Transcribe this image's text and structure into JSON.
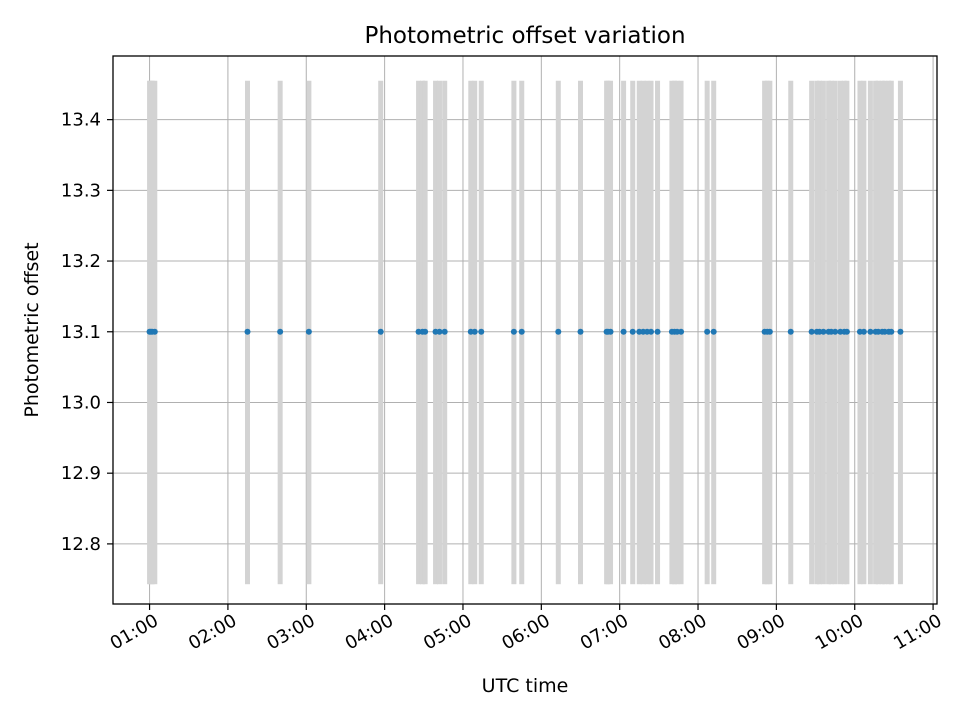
{
  "chart_data": {
    "type": "scatter",
    "title": "Photometric offset variation",
    "xlabel": "UTC time",
    "ylabel": "Photometric offset",
    "xlim": [
      "00:32",
      "11:03"
    ],
    "ylim": [
      12.715,
      13.49
    ],
    "xticks": [
      "01:00",
      "02:00",
      "03:00",
      "04:00",
      "05:00",
      "06:00",
      "07:00",
      "08:00",
      "09:00",
      "10:00",
      "11:00"
    ],
    "yticks": [
      "12.8",
      "12.9",
      "13.0",
      "13.1",
      "13.2",
      "13.3",
      "13.4"
    ],
    "grid": true,
    "band_range": [
      12.743,
      13.455
    ],
    "colors": {
      "points": "#1f77b4",
      "bands": "#d3d3d3",
      "grid": "#b0b0b0"
    },
    "series": [
      {
        "x": [
          "01:00",
          "01:01",
          "01:02",
          "01:04",
          "02:15",
          "02:40",
          "03:02",
          "03:57",
          "04:26",
          "04:29",
          "04:31",
          "04:39",
          "04:42",
          "04:46",
          "05:06",
          "05:09",
          "05:14",
          "05:39",
          "05:45",
          "06:13",
          "06:30",
          "06:50",
          "06:51",
          "06:53",
          "07:03",
          "07:10",
          "07:15",
          "07:18",
          "07:21",
          "07:24",
          "07:29",
          "07:40",
          "07:42",
          "07:44",
          "07:47",
          "08:07",
          "08:12",
          "08:51",
          "08:53",
          "08:55",
          "09:11",
          "09:27",
          "09:31",
          "09:33",
          "09:36",
          "09:40",
          "09:42",
          "09:45",
          "09:49",
          "09:52",
          "09:54",
          "10:04",
          "10:07",
          "10:12",
          "10:16",
          "10:18",
          "10:21",
          "10:23",
          "10:26",
          "10:28",
          "10:35"
        ],
        "y": [
          13.1,
          13.1,
          13.1,
          13.1,
          13.1,
          13.1,
          13.1,
          13.1,
          13.1,
          13.1,
          13.1,
          13.1,
          13.1,
          13.1,
          13.1,
          13.1,
          13.1,
          13.1,
          13.1,
          13.1,
          13.1,
          13.1,
          13.1,
          13.1,
          13.1,
          13.1,
          13.1,
          13.1,
          13.1,
          13.1,
          13.1,
          13.1,
          13.1,
          13.1,
          13.1,
          13.1,
          13.1,
          13.1,
          13.1,
          13.1,
          13.1,
          13.1,
          13.1,
          13.1,
          13.1,
          13.1,
          13.1,
          13.1,
          13.1,
          13.1,
          13.1,
          13.1,
          13.1,
          13.1,
          13.1,
          13.1,
          13.1,
          13.1,
          13.1,
          13.1,
          13.1
        ]
      }
    ]
  }
}
